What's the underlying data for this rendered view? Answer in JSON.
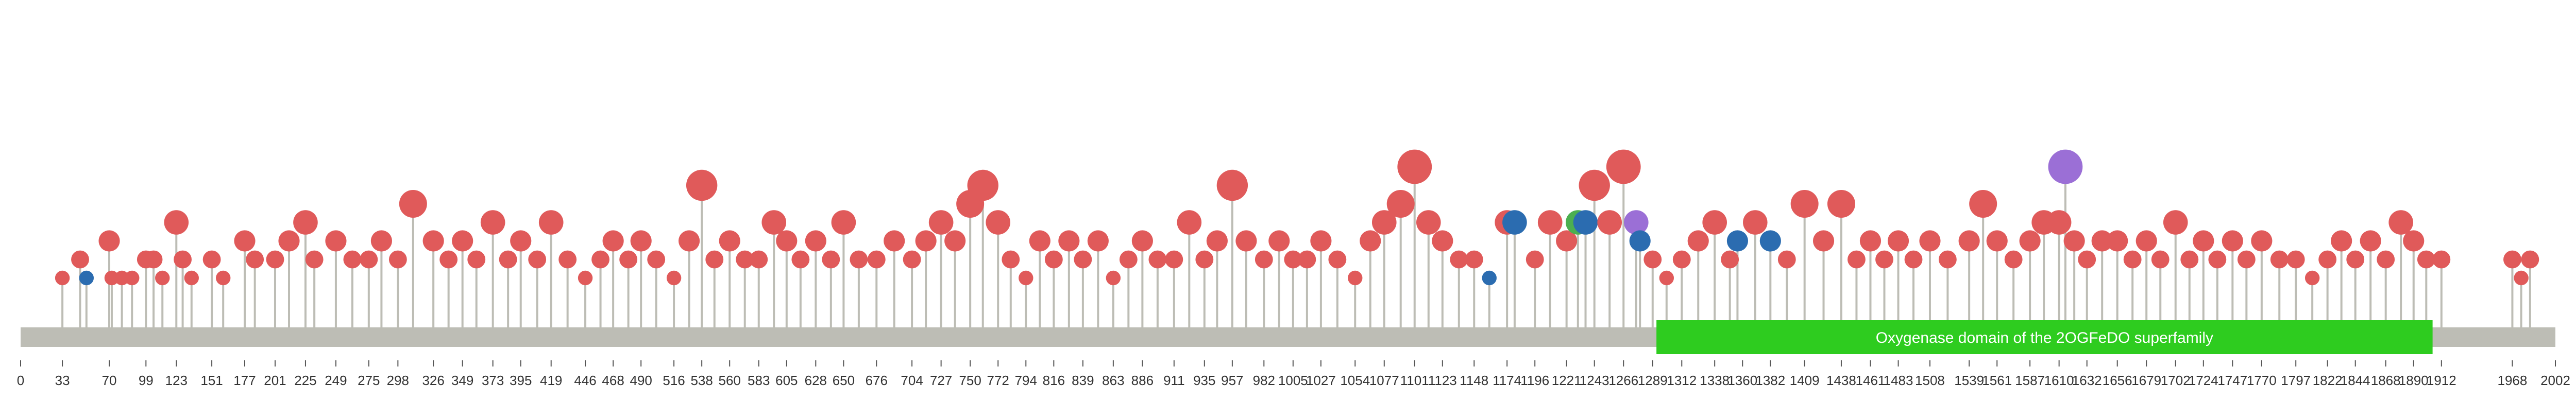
{
  "chart_data": {
    "type": "lollipop",
    "protein_length": 2002,
    "x_ticks": [
      0,
      33,
      70,
      99,
      123,
      151,
      177,
      201,
      225,
      249,
      275,
      298,
      326,
      349,
      373,
      395,
      419,
      446,
      468,
      490,
      516,
      538,
      560,
      583,
      605,
      628,
      650,
      676,
      704,
      727,
      750,
      772,
      794,
      816,
      839,
      863,
      886,
      911,
      935,
      957,
      982,
      1005,
      1027,
      1054,
      1077,
      1101,
      1123,
      1148,
      1174,
      1196,
      1221,
      1243,
      1266,
      1289,
      1312,
      1338,
      1360,
      1382,
      1409,
      1438,
      1461,
      1483,
      1508,
      1539,
      1561,
      1587,
      1610,
      1632,
      1656,
      1679,
      1702,
      1724,
      1747,
      1770,
      1797,
      1822,
      1844,
      1868,
      1890,
      1912,
      1968,
      2002
    ],
    "domains": [
      {
        "name": "Oxygenase domain of the 2OGFeDO superfamily",
        "start": 1292,
        "end": 1905,
        "color": "#2ecc1f"
      }
    ],
    "colors": {
      "missense": "#e05a5a",
      "truncating": "#2b6cb0",
      "inframe": "#9b6fd6",
      "other": "#4caf50",
      "stem": "#bdbdb5",
      "backbone": "#bdbdb5"
    },
    "mutations_ylim": [
      0,
      10
    ],
    "mutations": [
      {
        "pos": 33,
        "count": 1,
        "type": "missense"
      },
      {
        "pos": 47,
        "count": 2,
        "type": "missense"
      },
      {
        "pos": 52,
        "count": 1,
        "type": "truncating"
      },
      {
        "pos": 70,
        "count": 3,
        "type": "missense"
      },
      {
        "pos": 72,
        "count": 1,
        "type": "missense"
      },
      {
        "pos": 80,
        "count": 1,
        "type": "missense"
      },
      {
        "pos": 88,
        "count": 1,
        "type": "missense"
      },
      {
        "pos": 99,
        "count": 2,
        "type": "missense"
      },
      {
        "pos": 105,
        "count": 2,
        "type": "missense"
      },
      {
        "pos": 112,
        "count": 1,
        "type": "missense"
      },
      {
        "pos": 123,
        "count": 4,
        "type": "missense"
      },
      {
        "pos": 128,
        "count": 2,
        "type": "missense"
      },
      {
        "pos": 135,
        "count": 1,
        "type": "missense"
      },
      {
        "pos": 151,
        "count": 2,
        "type": "missense"
      },
      {
        "pos": 160,
        "count": 1,
        "type": "missense"
      },
      {
        "pos": 177,
        "count": 3,
        "type": "missense"
      },
      {
        "pos": 185,
        "count": 2,
        "type": "missense"
      },
      {
        "pos": 201,
        "count": 2,
        "type": "missense"
      },
      {
        "pos": 212,
        "count": 3,
        "type": "missense"
      },
      {
        "pos": 225,
        "count": 4,
        "type": "missense"
      },
      {
        "pos": 232,
        "count": 2,
        "type": "missense"
      },
      {
        "pos": 249,
        "count": 3,
        "type": "missense"
      },
      {
        "pos": 262,
        "count": 2,
        "type": "missense"
      },
      {
        "pos": 275,
        "count": 2,
        "type": "missense"
      },
      {
        "pos": 285,
        "count": 3,
        "type": "missense"
      },
      {
        "pos": 298,
        "count": 2,
        "type": "missense"
      },
      {
        "pos": 310,
        "count": 5,
        "type": "missense"
      },
      {
        "pos": 326,
        "count": 3,
        "type": "missense"
      },
      {
        "pos": 338,
        "count": 2,
        "type": "missense"
      },
      {
        "pos": 349,
        "count": 3,
        "type": "missense"
      },
      {
        "pos": 360,
        "count": 2,
        "type": "missense"
      },
      {
        "pos": 373,
        "count": 4,
        "type": "missense"
      },
      {
        "pos": 385,
        "count": 2,
        "type": "missense"
      },
      {
        "pos": 395,
        "count": 3,
        "type": "missense"
      },
      {
        "pos": 408,
        "count": 2,
        "type": "missense"
      },
      {
        "pos": 419,
        "count": 4,
        "type": "missense"
      },
      {
        "pos": 432,
        "count": 2,
        "type": "missense"
      },
      {
        "pos": 446,
        "count": 1,
        "type": "missense"
      },
      {
        "pos": 458,
        "count": 2,
        "type": "missense"
      },
      {
        "pos": 468,
        "count": 3,
        "type": "missense"
      },
      {
        "pos": 480,
        "count": 2,
        "type": "missense"
      },
      {
        "pos": 490,
        "count": 3,
        "type": "missense"
      },
      {
        "pos": 502,
        "count": 2,
        "type": "missense"
      },
      {
        "pos": 516,
        "count": 1,
        "type": "missense"
      },
      {
        "pos": 528,
        "count": 3,
        "type": "missense"
      },
      {
        "pos": 538,
        "count": 6,
        "type": "missense"
      },
      {
        "pos": 548,
        "count": 2,
        "type": "missense"
      },
      {
        "pos": 560,
        "count": 3,
        "type": "missense"
      },
      {
        "pos": 572,
        "count": 2,
        "type": "missense"
      },
      {
        "pos": 583,
        "count": 2,
        "type": "missense"
      },
      {
        "pos": 595,
        "count": 4,
        "type": "missense"
      },
      {
        "pos": 605,
        "count": 3,
        "type": "missense"
      },
      {
        "pos": 616,
        "count": 2,
        "type": "missense"
      },
      {
        "pos": 628,
        "count": 3,
        "type": "missense"
      },
      {
        "pos": 640,
        "count": 2,
        "type": "missense"
      },
      {
        "pos": 650,
        "count": 4,
        "type": "missense"
      },
      {
        "pos": 662,
        "count": 2,
        "type": "missense"
      },
      {
        "pos": 676,
        "count": 2,
        "type": "missense"
      },
      {
        "pos": 690,
        "count": 3,
        "type": "missense"
      },
      {
        "pos": 704,
        "count": 2,
        "type": "missense"
      },
      {
        "pos": 715,
        "count": 3,
        "type": "missense"
      },
      {
        "pos": 727,
        "count": 4,
        "type": "missense"
      },
      {
        "pos": 738,
        "count": 3,
        "type": "missense"
      },
      {
        "pos": 750,
        "count": 5,
        "type": "missense"
      },
      {
        "pos": 760,
        "count": 6,
        "type": "missense"
      },
      {
        "pos": 772,
        "count": 4,
        "type": "missense"
      },
      {
        "pos": 782,
        "count": 2,
        "type": "missense"
      },
      {
        "pos": 794,
        "count": 1,
        "type": "missense"
      },
      {
        "pos": 805,
        "count": 3,
        "type": "missense"
      },
      {
        "pos": 816,
        "count": 2,
        "type": "missense"
      },
      {
        "pos": 828,
        "count": 3,
        "type": "missense"
      },
      {
        "pos": 839,
        "count": 2,
        "type": "missense"
      },
      {
        "pos": 851,
        "count": 3,
        "type": "missense"
      },
      {
        "pos": 863,
        "count": 1,
        "type": "missense"
      },
      {
        "pos": 875,
        "count": 2,
        "type": "missense"
      },
      {
        "pos": 886,
        "count": 3,
        "type": "missense"
      },
      {
        "pos": 898,
        "count": 2,
        "type": "missense"
      },
      {
        "pos": 911,
        "count": 2,
        "type": "missense"
      },
      {
        "pos": 923,
        "count": 4,
        "type": "missense"
      },
      {
        "pos": 935,
        "count": 2,
        "type": "missense"
      },
      {
        "pos": 945,
        "count": 3,
        "type": "missense"
      },
      {
        "pos": 957,
        "count": 6,
        "type": "missense"
      },
      {
        "pos": 968,
        "count": 3,
        "type": "missense"
      },
      {
        "pos": 982,
        "count": 2,
        "type": "missense"
      },
      {
        "pos": 994,
        "count": 3,
        "type": "missense"
      },
      {
        "pos": 1005,
        "count": 2,
        "type": "missense"
      },
      {
        "pos": 1016,
        "count": 2,
        "type": "missense"
      },
      {
        "pos": 1027,
        "count": 3,
        "type": "missense"
      },
      {
        "pos": 1040,
        "count": 2,
        "type": "missense"
      },
      {
        "pos": 1054,
        "count": 1,
        "type": "missense"
      },
      {
        "pos": 1066,
        "count": 3,
        "type": "missense"
      },
      {
        "pos": 1077,
        "count": 4,
        "type": "missense"
      },
      {
        "pos": 1090,
        "count": 5,
        "type": "missense"
      },
      {
        "pos": 1101,
        "count": 7,
        "type": "missense"
      },
      {
        "pos": 1112,
        "count": 4,
        "type": "missense"
      },
      {
        "pos": 1123,
        "count": 3,
        "type": "missense"
      },
      {
        "pos": 1136,
        "count": 2,
        "type": "missense"
      },
      {
        "pos": 1148,
        "count": 2,
        "type": "missense"
      },
      {
        "pos": 1160,
        "count": 1,
        "type": "truncating"
      },
      {
        "pos": 1174,
        "count": 4,
        "type": "missense"
      },
      {
        "pos": 1180,
        "count": 4,
        "type": "truncating"
      },
      {
        "pos": 1196,
        "count": 2,
        "type": "missense"
      },
      {
        "pos": 1208,
        "count": 4,
        "type": "missense"
      },
      {
        "pos": 1221,
        "count": 3,
        "type": "missense"
      },
      {
        "pos": 1230,
        "count": 4,
        "type": "other"
      },
      {
        "pos": 1236,
        "count": 4,
        "type": "truncating"
      },
      {
        "pos": 1243,
        "count": 6,
        "type": "missense"
      },
      {
        "pos": 1255,
        "count": 4,
        "type": "missense"
      },
      {
        "pos": 1266,
        "count": 7,
        "type": "missense"
      },
      {
        "pos": 1276,
        "count": 4,
        "type": "inframe"
      },
      {
        "pos": 1279,
        "count": 3,
        "type": "truncating"
      },
      {
        "pos": 1289,
        "count": 2,
        "type": "missense"
      },
      {
        "pos": 1300,
        "count": 1,
        "type": "missense"
      },
      {
        "pos": 1312,
        "count": 2,
        "type": "missense"
      },
      {
        "pos": 1325,
        "count": 3,
        "type": "missense"
      },
      {
        "pos": 1338,
        "count": 4,
        "type": "missense"
      },
      {
        "pos": 1350,
        "count": 2,
        "type": "missense"
      },
      {
        "pos": 1356,
        "count": 3,
        "type": "truncating"
      },
      {
        "pos": 1370,
        "count": 4,
        "type": "missense"
      },
      {
        "pos": 1382,
        "count": 3,
        "type": "truncating"
      },
      {
        "pos": 1395,
        "count": 2,
        "type": "missense"
      },
      {
        "pos": 1409,
        "count": 5,
        "type": "missense"
      },
      {
        "pos": 1424,
        "count": 3,
        "type": "missense"
      },
      {
        "pos": 1438,
        "count": 5,
        "type": "missense"
      },
      {
        "pos": 1450,
        "count": 2,
        "type": "missense"
      },
      {
        "pos": 1461,
        "count": 3,
        "type": "missense"
      },
      {
        "pos": 1472,
        "count": 2,
        "type": "missense"
      },
      {
        "pos": 1483,
        "count": 3,
        "type": "missense"
      },
      {
        "pos": 1495,
        "count": 2,
        "type": "missense"
      },
      {
        "pos": 1508,
        "count": 3,
        "type": "missense"
      },
      {
        "pos": 1522,
        "count": 2,
        "type": "missense"
      },
      {
        "pos": 1539,
        "count": 3,
        "type": "missense"
      },
      {
        "pos": 1550,
        "count": 5,
        "type": "missense"
      },
      {
        "pos": 1561,
        "count": 3,
        "type": "missense"
      },
      {
        "pos": 1574,
        "count": 2,
        "type": "missense"
      },
      {
        "pos": 1587,
        "count": 3,
        "type": "missense"
      },
      {
        "pos": 1598,
        "count": 4,
        "type": "missense"
      },
      {
        "pos": 1610,
        "count": 4,
        "type": "missense"
      },
      {
        "pos": 1615,
        "count": 7,
        "type": "inframe"
      },
      {
        "pos": 1622,
        "count": 3,
        "type": "missense"
      },
      {
        "pos": 1632,
        "count": 2,
        "type": "missense"
      },
      {
        "pos": 1644,
        "count": 3,
        "type": "missense"
      },
      {
        "pos": 1656,
        "count": 3,
        "type": "missense"
      },
      {
        "pos": 1668,
        "count": 2,
        "type": "missense"
      },
      {
        "pos": 1679,
        "count": 3,
        "type": "missense"
      },
      {
        "pos": 1690,
        "count": 2,
        "type": "missense"
      },
      {
        "pos": 1702,
        "count": 4,
        "type": "missense"
      },
      {
        "pos": 1713,
        "count": 2,
        "type": "missense"
      },
      {
        "pos": 1724,
        "count": 3,
        "type": "missense"
      },
      {
        "pos": 1735,
        "count": 2,
        "type": "missense"
      },
      {
        "pos": 1747,
        "count": 3,
        "type": "missense"
      },
      {
        "pos": 1758,
        "count": 2,
        "type": "missense"
      },
      {
        "pos": 1770,
        "count": 3,
        "type": "missense"
      },
      {
        "pos": 1784,
        "count": 2,
        "type": "missense"
      },
      {
        "pos": 1797,
        "count": 2,
        "type": "missense"
      },
      {
        "pos": 1810,
        "count": 1,
        "type": "missense"
      },
      {
        "pos": 1822,
        "count": 2,
        "type": "missense"
      },
      {
        "pos": 1833,
        "count": 3,
        "type": "missense"
      },
      {
        "pos": 1844,
        "count": 2,
        "type": "missense"
      },
      {
        "pos": 1856,
        "count": 3,
        "type": "missense"
      },
      {
        "pos": 1868,
        "count": 2,
        "type": "missense"
      },
      {
        "pos": 1880,
        "count": 4,
        "type": "missense"
      },
      {
        "pos": 1890,
        "count": 3,
        "type": "missense"
      },
      {
        "pos": 1900,
        "count": 2,
        "type": "missense"
      },
      {
        "pos": 1912,
        "count": 2,
        "type": "missense"
      },
      {
        "pos": 1968,
        "count": 2,
        "type": "missense"
      },
      {
        "pos": 1975,
        "count": 1,
        "type": "missense"
      },
      {
        "pos": 1982,
        "count": 2,
        "type": "missense"
      }
    ]
  }
}
